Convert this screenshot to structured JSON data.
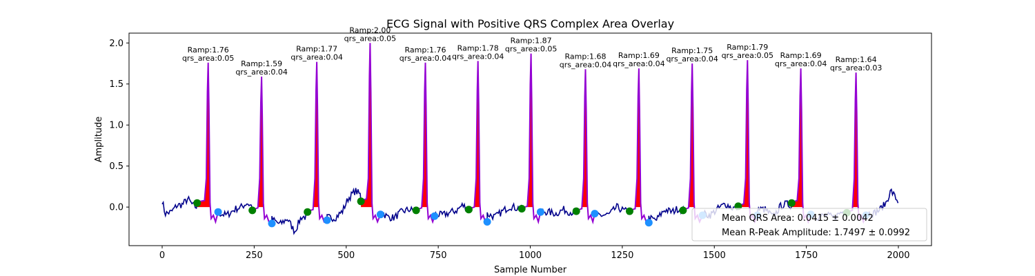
{
  "chart_data": {
    "type": "line",
    "title": "ECG Signal with Positive QRS Complex Area Overlay",
    "xlabel": "Sample Number",
    "ylabel": "Amplitude",
    "xlim": [
      -90,
      2090
    ],
    "ylim": [
      -0.47,
      2.12
    ],
    "xticks": [
      0,
      250,
      500,
      750,
      1000,
      1250,
      1500,
      1750,
      2000
    ],
    "yticks": [
      0.0,
      0.5,
      1.0,
      1.5,
      2.0
    ],
    "ytick_labels": [
      "0.0",
      "0.5",
      "1.0",
      "1.5",
      "2.0"
    ],
    "grid": false,
    "colors": {
      "signal": "#00008b",
      "qrs": "#9400d3",
      "qrs_fill": "#ff0000",
      "onset": "#008000",
      "offset": "#1e90ff"
    },
    "beats": [
      {
        "r_index": 125,
        "r_amp": 1.76,
        "qrs_area": 0.05,
        "onset_x": 95,
        "onset_y": 0.05,
        "offset_x": 152,
        "offset_y": -0.06,
        "label_ramp": "Ramp:1.76",
        "label_area": "qrs_area:0.05"
      },
      {
        "r_index": 270,
        "r_amp": 1.59,
        "qrs_area": 0.04,
        "onset_x": 245,
        "onset_y": -0.04,
        "offset_x": 298,
        "offset_y": -0.2,
        "label_ramp": "Ramp:1.59",
        "label_area": "qrs_area:0.04"
      },
      {
        "r_index": 420,
        "r_amp": 1.77,
        "qrs_area": 0.04,
        "onset_x": 395,
        "onset_y": -0.06,
        "offset_x": 448,
        "offset_y": -0.16,
        "label_ramp": "Ramp:1.77",
        "label_area": "qrs_area:0.04"
      },
      {
        "r_index": 565,
        "r_amp": 2.0,
        "qrs_area": 0.05,
        "onset_x": 540,
        "onset_y": 0.07,
        "offset_x": 593,
        "offset_y": -0.09,
        "label_ramp": "Ramp:2.00",
        "label_area": "qrs_area:0.05"
      },
      {
        "r_index": 715,
        "r_amp": 1.76,
        "qrs_area": 0.04,
        "onset_x": 690,
        "onset_y": -0.04,
        "offset_x": 740,
        "offset_y": -0.11,
        "label_ramp": "Ramp:1.76",
        "label_area": "qrs_area:0.04"
      },
      {
        "r_index": 858,
        "r_amp": 1.78,
        "qrs_area": 0.04,
        "onset_x": 833,
        "onset_y": -0.03,
        "offset_x": 883,
        "offset_y": -0.18,
        "label_ramp": "Ramp:1.78",
        "label_area": "qrs_area:0.04"
      },
      {
        "r_index": 1002,
        "r_amp": 1.87,
        "qrs_area": 0.05,
        "onset_x": 977,
        "onset_y": -0.02,
        "offset_x": 1028,
        "offset_y": -0.06,
        "label_ramp": "Ramp:1.87",
        "label_area": "qrs_area:0.05"
      },
      {
        "r_index": 1150,
        "r_amp": 1.68,
        "qrs_area": 0.04,
        "onset_x": 1125,
        "onset_y": -0.05,
        "offset_x": 1175,
        "offset_y": -0.08,
        "label_ramp": "Ramp:1.68",
        "label_area": "qrs_area:0.04"
      },
      {
        "r_index": 1295,
        "r_amp": 1.69,
        "qrs_area": 0.04,
        "onset_x": 1270,
        "onset_y": -0.05,
        "offset_x": 1322,
        "offset_y": -0.19,
        "label_ramp": "Ramp:1.69",
        "label_area": "qrs_area:0.04"
      },
      {
        "r_index": 1440,
        "r_amp": 1.75,
        "qrs_area": 0.04,
        "onset_x": 1415,
        "onset_y": -0.04,
        "offset_x": 1468,
        "offset_y": -0.1,
        "label_ramp": "Ramp:1.75",
        "label_area": "qrs_area:0.04"
      },
      {
        "r_index": 1590,
        "r_amp": 1.79,
        "qrs_area": 0.05,
        "onset_x": 1565,
        "onset_y": 0.01,
        "offset_x": 1617,
        "offset_y": -0.1,
        "label_ramp": "Ramp:1.79",
        "label_area": "qrs_area:0.05"
      },
      {
        "r_index": 1735,
        "r_amp": 1.69,
        "qrs_area": 0.04,
        "onset_x": 1710,
        "onset_y": 0.05,
        "offset_x": 1762,
        "offset_y": -0.09,
        "label_ramp": "Ramp:1.69",
        "label_area": "qrs_area:0.04"
      },
      {
        "r_index": 1885,
        "r_amp": 1.64,
        "qrs_area": 0.03,
        "onset_x": 1860,
        "onset_y": -0.07,
        "offset_x": 1912,
        "offset_y": -0.1,
        "label_ramp": "Ramp:1.64",
        "label_area": "qrs_area:0.03"
      }
    ],
    "baseline": [
      [
        0,
        0.08
      ],
      [
        8,
        -0.08
      ],
      [
        25,
        -0.06
      ],
      [
        40,
        0.02
      ],
      [
        55,
        0.03
      ],
      [
        70,
        0.1
      ],
      [
        85,
        0.01
      ],
      [
        175,
        -0.1
      ],
      [
        200,
        -0.02
      ],
      [
        215,
        0.0
      ],
      [
        230,
        0.05
      ],
      [
        320,
        -0.21
      ],
      [
        340,
        -0.14
      ],
      [
        360,
        -0.3
      ],
      [
        378,
        -0.12
      ],
      [
        470,
        -0.13
      ],
      [
        490,
        -0.05
      ],
      [
        505,
        0.1
      ],
      [
        525,
        0.2
      ],
      [
        612,
        -0.12
      ],
      [
        630,
        -0.13
      ],
      [
        650,
        -0.06
      ],
      [
        670,
        -0.03
      ],
      [
        760,
        -0.1
      ],
      [
        780,
        -0.07
      ],
      [
        800,
        -0.04
      ],
      [
        815,
        0.02
      ],
      [
        905,
        -0.12
      ],
      [
        925,
        -0.05
      ],
      [
        945,
        0.01
      ],
      [
        962,
        -0.01
      ],
      [
        1048,
        -0.06
      ],
      [
        1070,
        -0.08
      ],
      [
        1090,
        -0.03
      ],
      [
        1108,
        -0.06
      ],
      [
        1195,
        -0.1
      ],
      [
        1215,
        -0.09
      ],
      [
        1235,
        0.0
      ],
      [
        1252,
        -0.04
      ],
      [
        1342,
        -0.16
      ],
      [
        1365,
        -0.03
      ],
      [
        1385,
        -0.06
      ],
      [
        1400,
        -0.02
      ],
      [
        1488,
        -0.1
      ],
      [
        1510,
        -0.02
      ],
      [
        1530,
        0.04
      ],
      [
        1548,
        -0.01
      ],
      [
        1638,
        -0.03
      ],
      [
        1660,
        -0.12
      ],
      [
        1680,
        0.01
      ],
      [
        1695,
        0.04
      ],
      [
        1782,
        -0.12
      ],
      [
        1805,
        -0.1
      ],
      [
        1825,
        -0.13
      ],
      [
        1845,
        -0.06
      ],
      [
        1932,
        -0.08
      ],
      [
        1950,
        -0.03
      ],
      [
        1965,
        0.04
      ],
      [
        1980,
        0.2
      ],
      [
        2000,
        0.06
      ]
    ],
    "legend": {
      "placement": "lower right",
      "entries": [
        "Mean QRS Area: 0.0415 ± 0.0042",
        "Mean R-Peak Amplitude: 1.7497 ± 0.0992"
      ]
    }
  }
}
